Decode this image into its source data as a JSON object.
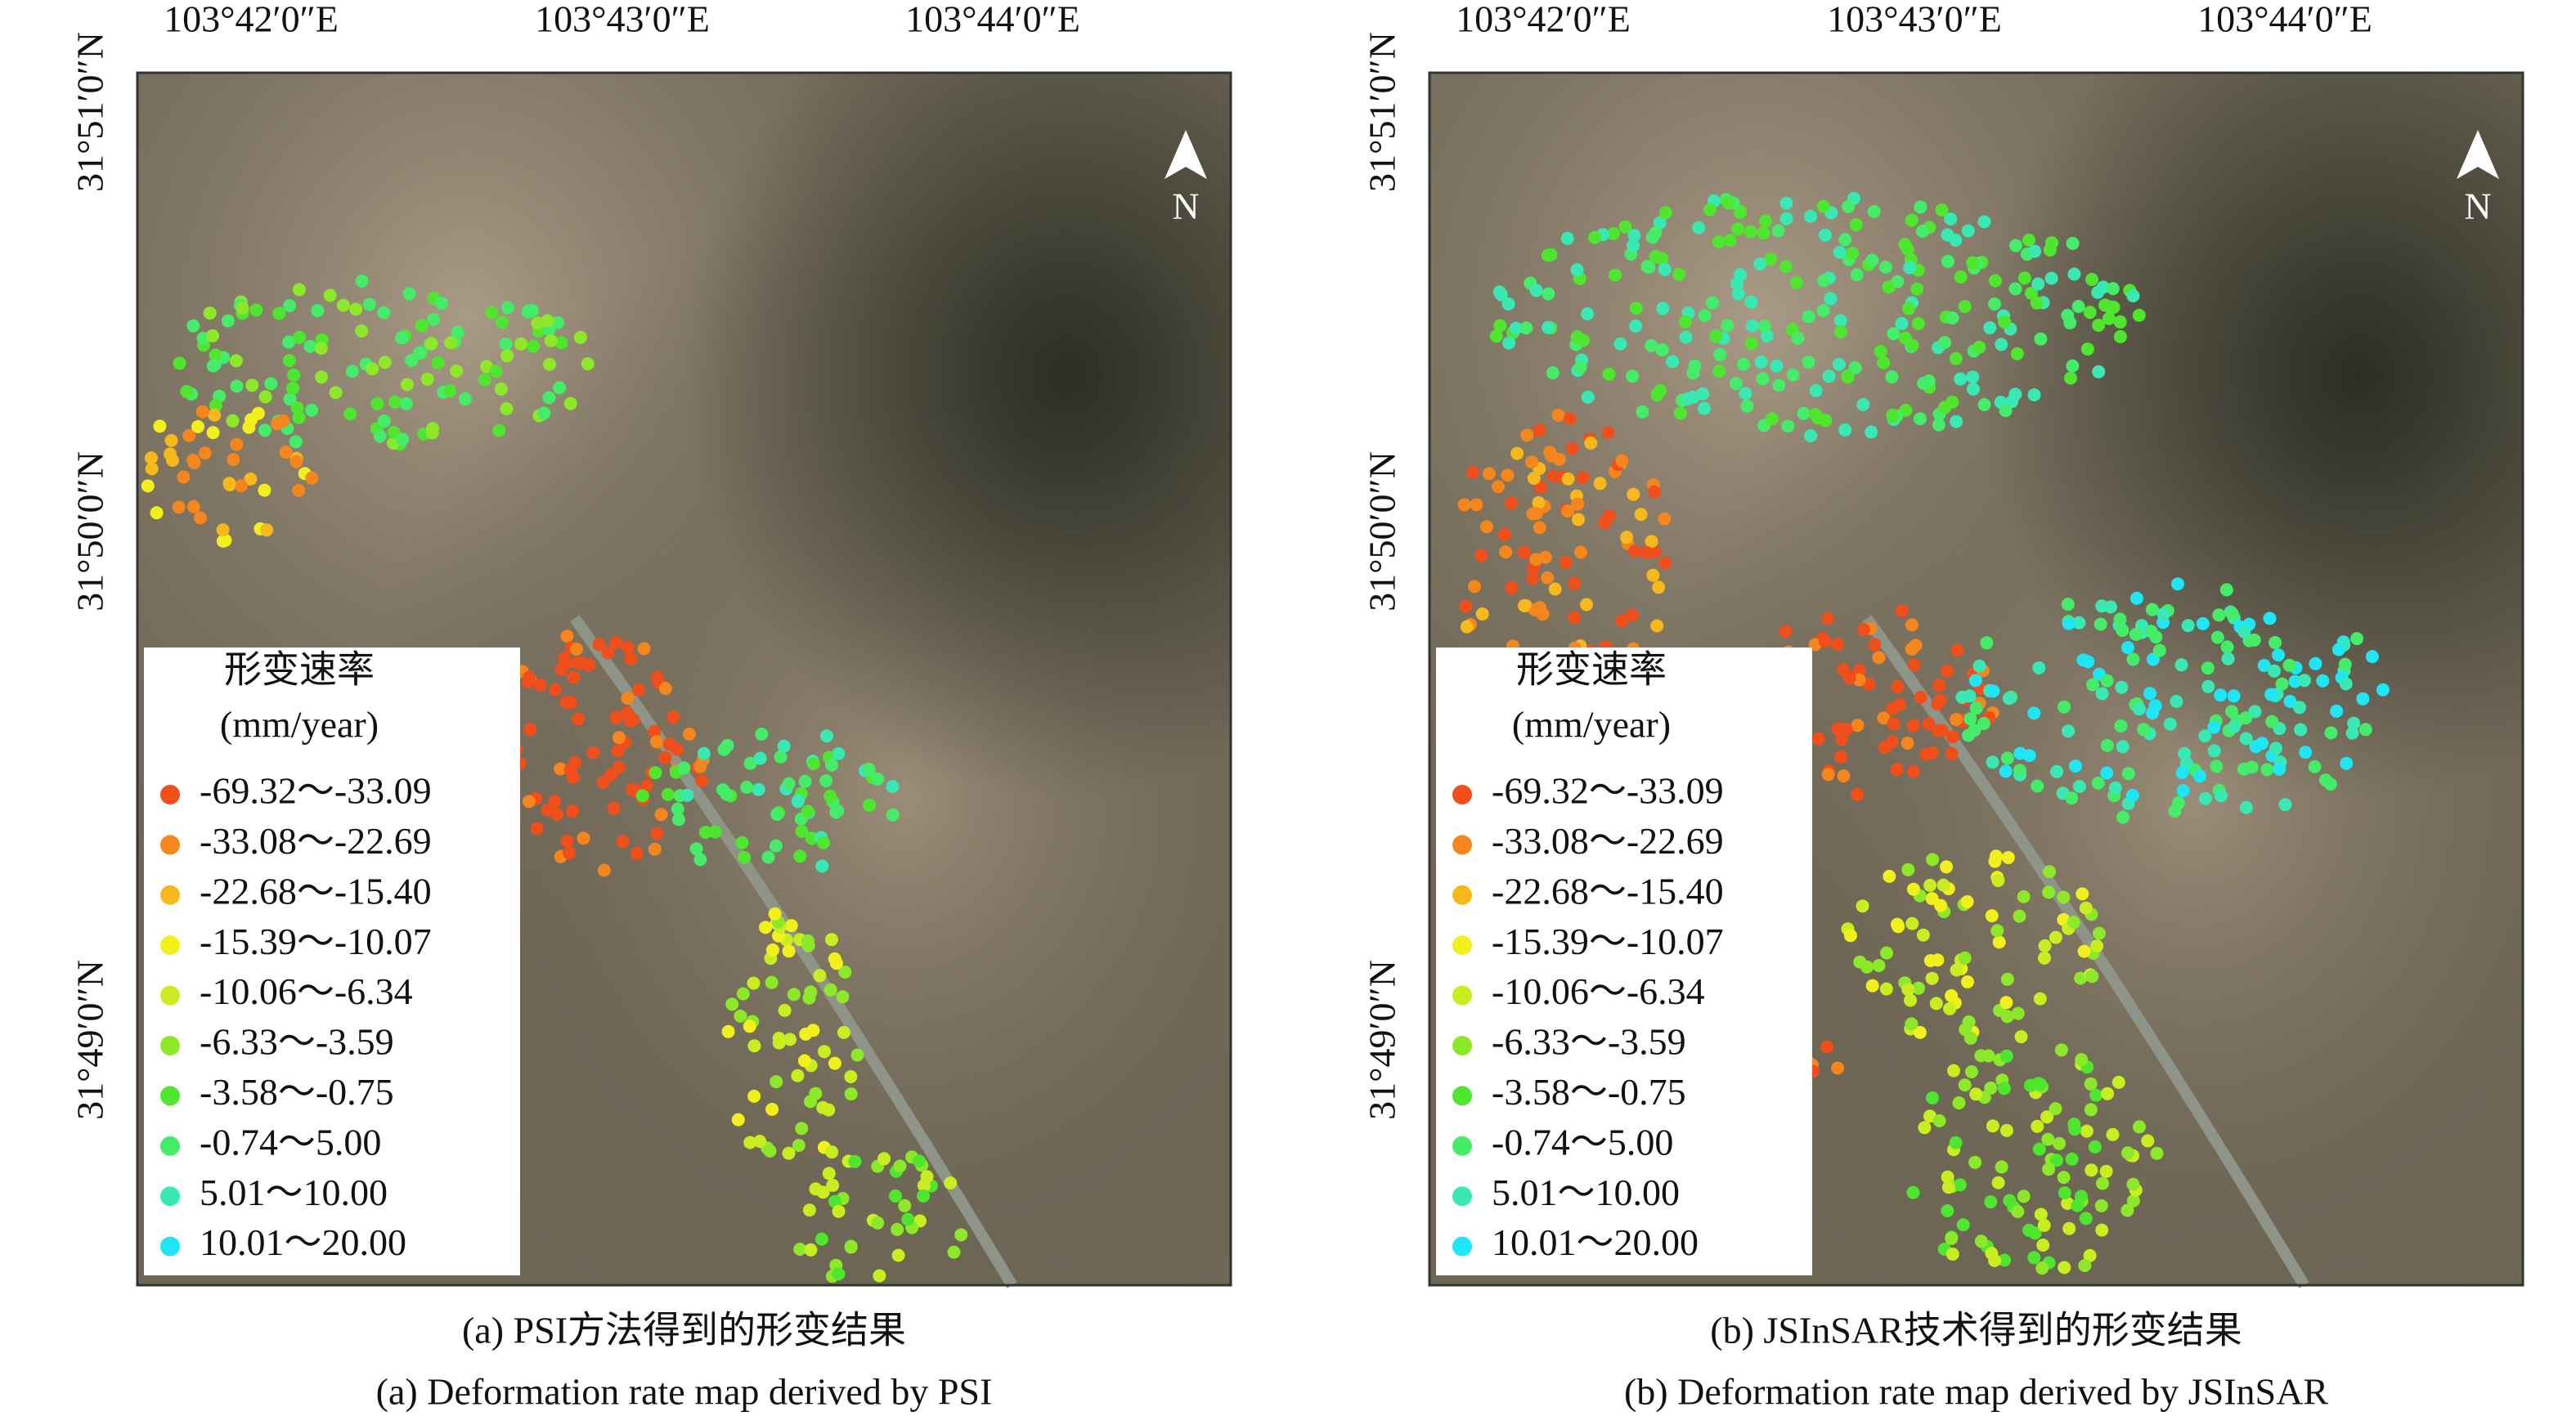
{
  "panels": [
    {
      "top_labels": [
        "103°42′0″E",
        "103°43′0″E",
        "103°44′0″E"
      ],
      "left_labels": [
        "31°51′0″N",
        "31°50′0″N",
        "31°49′0″N"
      ],
      "north": "N",
      "legend": {
        "title": "形变速率",
        "unit": "(mm/year)",
        "items": [
          {
            "label": "-69.32～-33.09",
            "color": "#f04e1a"
          },
          {
            "label": "-33.08～-22.69",
            "color": "#f5861e"
          },
          {
            "label": "-22.68～-15.40",
            "color": "#f7b81c"
          },
          {
            "label": "-15.39～-10.07",
            "color": "#f2f01c"
          },
          {
            "label": "-10.06～-6.34",
            "color": "#c8ee22"
          },
          {
            "label": "-6.33～-3.59",
            "color": "#8ee82a"
          },
          {
            "label": "-3.58～-0.75",
            "color": "#4ee62e"
          },
          {
            "label": "-0.74～5.00",
            "color": "#44ec6a"
          },
          {
            "label": "5.01～10.00",
            "color": "#3ae8b4"
          },
          {
            "label": "10.01～20.00",
            "color": "#1ee6f4"
          }
        ]
      },
      "caption_cn": "(a) PSI方法得到的形变结果",
      "caption_en": "(a) Deformation rate map derived by PSI"
    },
    {
      "top_labels": [
        "103°42′0″E",
        "103°43′0″E",
        "103°44′0″E"
      ],
      "left_labels": [
        "31°51′0″N",
        "31°50′0″N",
        "31°49′0″N"
      ],
      "north": "N",
      "legend": {
        "title": "形变速率",
        "unit": "(mm/year)",
        "items": [
          {
            "label": "-69.32～-33.09",
            "color": "#f04e1a"
          },
          {
            "label": "-33.08～-22.69",
            "color": "#f5861e"
          },
          {
            "label": "-22.68～-15.40",
            "color": "#f7b81c"
          },
          {
            "label": "-15.39～-10.07",
            "color": "#f2f01c"
          },
          {
            "label": "-10.06～-6.34",
            "color": "#c8ee22"
          },
          {
            "label": "-6.33～-3.59",
            "color": "#8ee82a"
          },
          {
            "label": "-3.58～-0.75",
            "color": "#4ee62e"
          },
          {
            "label": "-0.74～5.00",
            "color": "#44ec6a"
          },
          {
            "label": "5.01～10.00",
            "color": "#3ae8b4"
          },
          {
            "label": "10.01～20.00",
            "color": "#1ee6f4"
          }
        ]
      },
      "caption_cn": "(b) JSInSAR技术得到的形变结果",
      "caption_en": "(b) Deformation rate map derived by JSInSAR"
    }
  ]
}
